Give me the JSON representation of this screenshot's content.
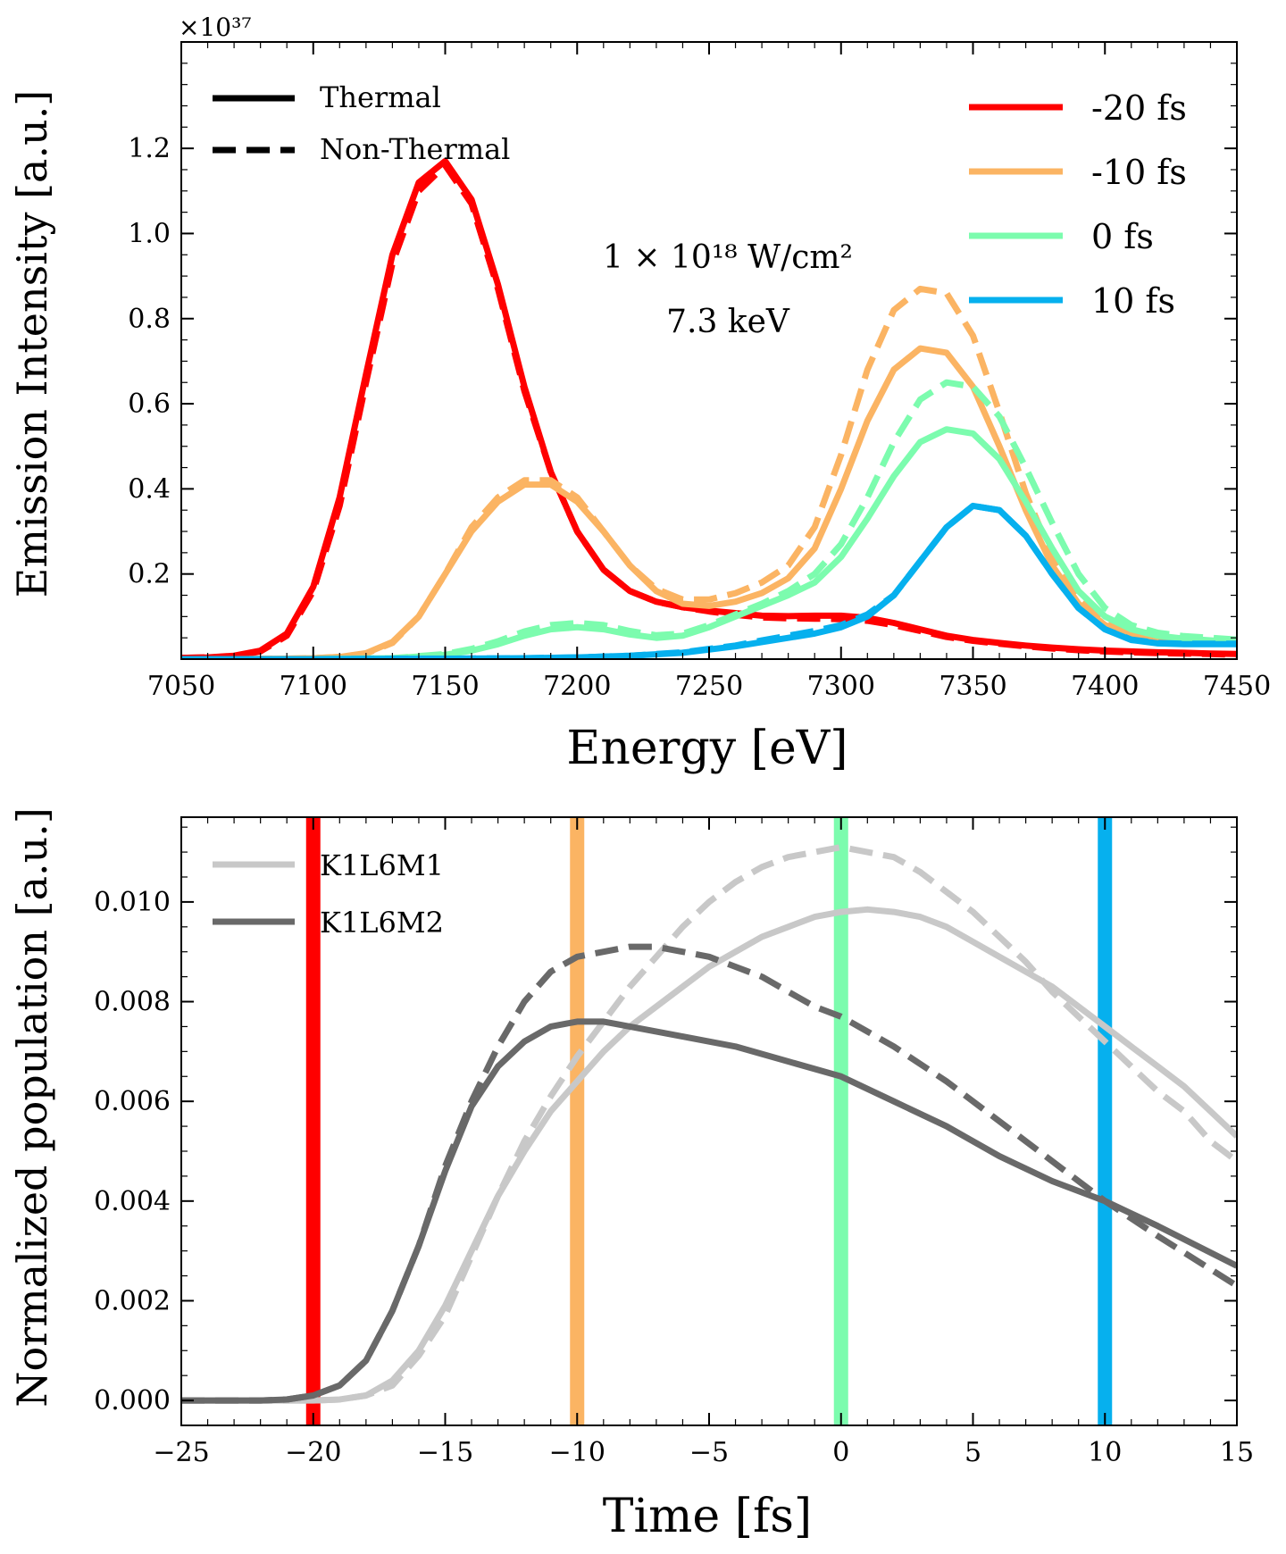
{
  "chart_data": [
    {
      "type": "line",
      "xlabel": "Energy [eV]",
      "ylabel": "Emission Intensity [a.u.]",
      "scale_label": "×10³⁷",
      "xlim": [
        7050,
        7450
      ],
      "ylim": [
        0,
        1.45
      ],
      "xticks": [
        7050,
        7100,
        7150,
        7200,
        7250,
        7300,
        7350,
        7400,
        7450
      ],
      "yticks": [
        0.2,
        0.4,
        0.6,
        0.8,
        1.0,
        1.2
      ],
      "annotation": [
        "1 × 10¹⁸ W/cm²",
        "7.3 keV"
      ],
      "style_legend": [
        {
          "label": "Thermal",
          "dash": "solid"
        },
        {
          "label": "Non-Thermal",
          "dash": "dashed"
        }
      ],
      "series": [
        {
          "name": "-20 fs",
          "color": "#ff0000",
          "variant": "thermal",
          "x": [
            7050,
            7060,
            7070,
            7080,
            7090,
            7100,
            7110,
            7120,
            7130,
            7140,
            7150,
            7160,
            7170,
            7180,
            7190,
            7200,
            7210,
            7220,
            7230,
            7240,
            7250,
            7260,
            7270,
            7280,
            7290,
            7300,
            7310,
            7320,
            7330,
            7340,
            7350,
            7360,
            7370,
            7380,
            7390,
            7400,
            7410,
            7420,
            7430,
            7440,
            7450
          ],
          "values": [
            0.003,
            0.004,
            0.008,
            0.02,
            0.06,
            0.17,
            0.38,
            0.67,
            0.95,
            1.12,
            1.17,
            1.08,
            0.88,
            0.64,
            0.44,
            0.3,
            0.21,
            0.16,
            0.135,
            0.122,
            0.114,
            0.108,
            0.102,
            0.101,
            0.102,
            0.102,
            0.097,
            0.085,
            0.07,
            0.055,
            0.045,
            0.038,
            0.032,
            0.027,
            0.023,
            0.02,
            0.018,
            0.016,
            0.015,
            0.013,
            0.012
          ]
        },
        {
          "name": "-20 fs",
          "color": "#ff0000",
          "variant": "non-thermal",
          "x": [
            7050,
            7060,
            7070,
            7080,
            7090,
            7100,
            7110,
            7120,
            7130,
            7140,
            7150,
            7160,
            7170,
            7180,
            7190,
            7200,
            7210,
            7220,
            7230,
            7240,
            7250,
            7260,
            7270,
            7280,
            7290,
            7300,
            7310,
            7320,
            7330,
            7340,
            7350,
            7360,
            7370,
            7380,
            7390,
            7400,
            7410,
            7420,
            7430,
            7440,
            7450
          ],
          "values": [
            0.003,
            0.004,
            0.007,
            0.018,
            0.055,
            0.16,
            0.36,
            0.65,
            0.93,
            1.1,
            1.16,
            1.07,
            0.87,
            0.63,
            0.44,
            0.3,
            0.21,
            0.16,
            0.135,
            0.122,
            0.112,
            0.104,
            0.098,
            0.096,
            0.095,
            0.094,
            0.09,
            0.08,
            0.066,
            0.052,
            0.043,
            0.036,
            0.03,
            0.025,
            0.021,
            0.018,
            0.016,
            0.014,
            0.013,
            0.012,
            0.01
          ]
        },
        {
          "name": "-10 fs",
          "color": "#fbb463",
          "variant": "thermal",
          "x": [
            7050,
            7070,
            7090,
            7100,
            7110,
            7120,
            7130,
            7140,
            7150,
            7160,
            7170,
            7180,
            7190,
            7200,
            7210,
            7220,
            7230,
            7240,
            7250,
            7260,
            7270,
            7280,
            7290,
            7300,
            7310,
            7320,
            7330,
            7340,
            7350,
            7360,
            7370,
            7380,
            7390,
            7400,
            7410,
            7420,
            7430,
            7440,
            7450
          ],
          "values": [
            0,
            0,
            0.001,
            0.002,
            0.005,
            0.014,
            0.04,
            0.1,
            0.2,
            0.3,
            0.37,
            0.41,
            0.41,
            0.37,
            0.3,
            0.22,
            0.16,
            0.13,
            0.125,
            0.135,
            0.155,
            0.19,
            0.26,
            0.4,
            0.56,
            0.68,
            0.73,
            0.72,
            0.64,
            0.5,
            0.35,
            0.22,
            0.13,
            0.08,
            0.06,
            0.05,
            0.045,
            0.042,
            0.04
          ]
        },
        {
          "name": "-10 fs",
          "color": "#fbb463",
          "variant": "non-thermal",
          "x": [
            7050,
            7070,
            7090,
            7100,
            7110,
            7120,
            7130,
            7140,
            7150,
            7160,
            7170,
            7180,
            7190,
            7200,
            7210,
            7220,
            7230,
            7240,
            7250,
            7260,
            7270,
            7280,
            7290,
            7300,
            7310,
            7320,
            7330,
            7340,
            7350,
            7360,
            7370,
            7380,
            7390,
            7400,
            7410,
            7420,
            7430,
            7440,
            7450
          ],
          "values": [
            0,
            0,
            0.001,
            0.002,
            0.005,
            0.013,
            0.038,
            0.1,
            0.2,
            0.31,
            0.38,
            0.42,
            0.42,
            0.38,
            0.3,
            0.22,
            0.165,
            0.14,
            0.14,
            0.155,
            0.18,
            0.22,
            0.31,
            0.48,
            0.68,
            0.82,
            0.87,
            0.86,
            0.76,
            0.58,
            0.39,
            0.24,
            0.14,
            0.085,
            0.062,
            0.052,
            0.046,
            0.043,
            0.04
          ]
        },
        {
          "name": "0 fs",
          "color": "#7cfcae",
          "variant": "thermal",
          "x": [
            7050,
            7100,
            7130,
            7150,
            7160,
            7170,
            7180,
            7190,
            7200,
            7210,
            7220,
            7230,
            7240,
            7250,
            7260,
            7270,
            7280,
            7290,
            7300,
            7310,
            7320,
            7330,
            7340,
            7350,
            7360,
            7370,
            7380,
            7390,
            7400,
            7410,
            7420,
            7430,
            7440,
            7450
          ],
          "values": [
            0,
            0,
            0.002,
            0.01,
            0.02,
            0.035,
            0.055,
            0.07,
            0.075,
            0.07,
            0.058,
            0.05,
            0.055,
            0.075,
            0.1,
            0.125,
            0.15,
            0.18,
            0.24,
            0.33,
            0.43,
            0.51,
            0.54,
            0.53,
            0.47,
            0.37,
            0.26,
            0.16,
            0.1,
            0.07,
            0.055,
            0.048,
            0.044,
            0.04
          ]
        },
        {
          "name": "0 fs",
          "color": "#7cfcae",
          "variant": "non-thermal",
          "x": [
            7050,
            7100,
            7130,
            7150,
            7160,
            7170,
            7180,
            7190,
            7200,
            7210,
            7220,
            7230,
            7240,
            7250,
            7260,
            7270,
            7280,
            7290,
            7300,
            7310,
            7320,
            7330,
            7340,
            7350,
            7360,
            7370,
            7380,
            7390,
            7400,
            7410,
            7420,
            7430,
            7440,
            7450
          ],
          "values": [
            0,
            0,
            0.002,
            0.012,
            0.024,
            0.042,
            0.065,
            0.08,
            0.085,
            0.08,
            0.066,
            0.056,
            0.06,
            0.08,
            0.105,
            0.13,
            0.16,
            0.2,
            0.27,
            0.38,
            0.51,
            0.61,
            0.65,
            0.64,
            0.57,
            0.45,
            0.32,
            0.2,
            0.12,
            0.08,
            0.062,
            0.054,
            0.05,
            0.046
          ]
        },
        {
          "name": "10 fs",
          "color": "#06b0ee",
          "variant": "thermal",
          "x": [
            7050,
            7100,
            7150,
            7180,
            7200,
            7220,
            7240,
            7260,
            7270,
            7280,
            7290,
            7300,
            7310,
            7320,
            7330,
            7340,
            7350,
            7360,
            7370,
            7380,
            7390,
            7400,
            7410,
            7420,
            7430,
            7440,
            7450
          ],
          "values": [
            0,
            0,
            0.001,
            0.002,
            0.004,
            0.008,
            0.015,
            0.03,
            0.04,
            0.05,
            0.06,
            0.075,
            0.1,
            0.15,
            0.23,
            0.31,
            0.36,
            0.35,
            0.29,
            0.2,
            0.12,
            0.07,
            0.045,
            0.037,
            0.035,
            0.035,
            0.035
          ]
        },
        {
          "name": "10 fs",
          "color": "#06b0ee",
          "variant": "non-thermal",
          "x": [
            7050,
            7100,
            7150,
            7180,
            7200,
            7220,
            7240,
            7260,
            7270,
            7280,
            7290,
            7300,
            7310,
            7320,
            7330,
            7340,
            7350,
            7360,
            7370,
            7380,
            7390,
            7400,
            7410,
            7420,
            7430,
            7440,
            7450
          ],
          "values": [
            0,
            0,
            0.001,
            0.002,
            0.004,
            0.008,
            0.016,
            0.032,
            0.044,
            0.055,
            0.066,
            0.08,
            0.105,
            0.15,
            0.23,
            0.31,
            0.36,
            0.35,
            0.29,
            0.2,
            0.12,
            0.07,
            0.046,
            0.038,
            0.036,
            0.036,
            0.036
          ]
        }
      ]
    },
    {
      "type": "line",
      "xlabel": "Time [fs]",
      "ylabel": "Normalized population [a.u.]",
      "xlim": [
        -25,
        15
      ],
      "ylim": [
        -0.0005,
        0.0117
      ],
      "xticks": [
        -25,
        -20,
        -15,
        -10,
        -5,
        0,
        5,
        10,
        15
      ],
      "xtick_labels": [
        "−25",
        "−20",
        "−15",
        "−10",
        "−5",
        "0",
        "5",
        "10",
        "15"
      ],
      "yticks": [
        0.0,
        0.002,
        0.004,
        0.006,
        0.008,
        0.01
      ],
      "ytick_labels": [
        "0.000",
        "0.002",
        "0.004",
        "0.006",
        "0.008",
        "0.010"
      ],
      "vlines": [
        {
          "x": -20,
          "color": "#ff0000"
        },
        {
          "x": -10,
          "color": "#fbb463"
        },
        {
          "x": 0,
          "color": "#7cfcae"
        },
        {
          "x": 10,
          "color": "#06b0ee"
        }
      ],
      "series": [
        {
          "name": "K1L6M1",
          "color": "#c8c8c8",
          "variant": "thermal",
          "x": [
            -25,
            -22,
            -20,
            -19,
            -18,
            -17,
            -16,
            -15,
            -14,
            -13,
            -12,
            -11,
            -10,
            -9,
            -8,
            -7,
            -6,
            -5,
            -4,
            -3,
            -2,
            -1,
            0,
            1,
            2,
            3,
            4,
            5,
            6,
            7,
            8,
            9,
            10,
            11,
            12,
            13,
            14,
            15
          ],
          "values": [
            0,
            0,
            0,
            2e-05,
            0.0001,
            0.0004,
            0.001,
            0.0019,
            0.003,
            0.0041,
            0.005,
            0.0058,
            0.0064,
            0.007,
            0.0075,
            0.0079,
            0.0083,
            0.0087,
            0.009,
            0.0093,
            0.0095,
            0.0097,
            0.0098,
            0.00985,
            0.0098,
            0.0097,
            0.0095,
            0.0092,
            0.0089,
            0.0086,
            0.0083,
            0.0079,
            0.0075,
            0.0071,
            0.0067,
            0.0063,
            0.0058,
            0.0053
          ]
        },
        {
          "name": "K1L6M1",
          "color": "#c8c8c8",
          "variant": "non-thermal",
          "x": [
            -25,
            -22,
            -20,
            -19,
            -18,
            -17,
            -16,
            -15,
            -14,
            -13,
            -12,
            -11,
            -10,
            -9,
            -8,
            -7,
            -6,
            -5,
            -4,
            -3,
            -2,
            -1,
            0,
            1,
            2,
            3,
            4,
            5,
            6,
            7,
            8,
            9,
            10,
            11,
            12,
            13,
            14,
            15
          ],
          "values": [
            0,
            0,
            0,
            2e-05,
            0.0001,
            0.0003,
            0.0009,
            0.0017,
            0.0029,
            0.0041,
            0.0052,
            0.0061,
            0.0069,
            0.0076,
            0.0083,
            0.0089,
            0.0095,
            0.01,
            0.0104,
            0.0107,
            0.0109,
            0.011,
            0.0111,
            0.011,
            0.0109,
            0.0106,
            0.0102,
            0.0098,
            0.0093,
            0.0088,
            0.0082,
            0.0077,
            0.0072,
            0.0067,
            0.0062,
            0.0058,
            0.0052,
            0.0048
          ]
        },
        {
          "name": "K1L6M2",
          "color": "#696969",
          "variant": "thermal",
          "x": [
            -25,
            -22,
            -21,
            -20,
            -19,
            -18,
            -17,
            -16,
            -15,
            -14,
            -13,
            -12,
            -11,
            -10,
            -9,
            -8,
            -6,
            -4,
            -2,
            0,
            2,
            4,
            6,
            8,
            10,
            12,
            15
          ],
          "values": [
            0,
            0,
            2e-05,
            0.0001,
            0.0003,
            0.0008,
            0.0018,
            0.0031,
            0.0046,
            0.0059,
            0.0067,
            0.0072,
            0.0075,
            0.0076,
            0.0076,
            0.0075,
            0.0073,
            0.0071,
            0.0068,
            0.0065,
            0.006,
            0.0055,
            0.0049,
            0.0044,
            0.004,
            0.0035,
            0.0027
          ]
        },
        {
          "name": "K1L6M2",
          "color": "#696969",
          "variant": "non-thermal",
          "x": [
            -25,
            -22,
            -21,
            -20,
            -19,
            -18,
            -17,
            -16,
            -15,
            -14,
            -13,
            -12,
            -11,
            -10,
            -9,
            -8,
            -7,
            -6,
            -5,
            -4,
            -3,
            -2,
            -1,
            0,
            2,
            4,
            6,
            8,
            10,
            12,
            15
          ],
          "values": [
            0,
            0,
            2e-05,
            0.0001,
            0.0003,
            0.0008,
            0.0018,
            0.0031,
            0.0047,
            0.006,
            0.0071,
            0.008,
            0.0086,
            0.0089,
            0.009,
            0.0091,
            0.0091,
            0.009,
            0.0089,
            0.0087,
            0.0085,
            0.0082,
            0.0079,
            0.0077,
            0.0071,
            0.0064,
            0.0056,
            0.0048,
            0.004,
            0.0033,
            0.0023
          ]
        }
      ],
      "legend": [
        "K1L6M1",
        "K1L6M2"
      ]
    }
  ]
}
